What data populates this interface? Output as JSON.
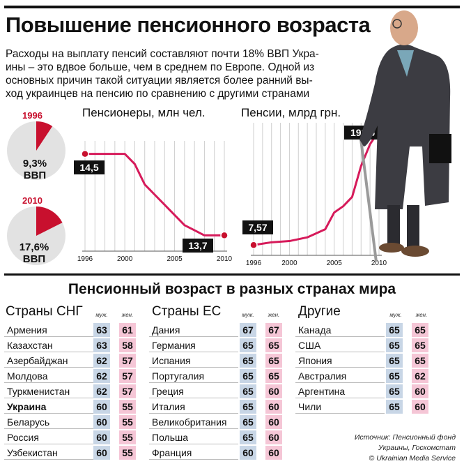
{
  "title": "Повышение пенсионного возраста",
  "intro_lines": [
    "Расходы на выплату пенсий составляют почти 18% ВВП Укра-",
    "ины – это вдвое больше, чем в среднем по Европе. Одной из",
    "основных причин такой ситуации является более ранний вы-",
    "ход украинцев на пенсию по сравнению с другими странами"
  ],
  "pies": [
    {
      "year": "1996",
      "value_label": "9,3%",
      "unit": "ВВП",
      "share": 0.093
    },
    {
      "year": "2010",
      "value_label": "17,6%",
      "unit": "ВВП",
      "share": 0.176
    }
  ],
  "colors": {
    "accent": "#c8102e",
    "line": "#d61a5a",
    "male": "#c8d6e6",
    "female": "#f5c6d6",
    "pie_bg": "#e2e2e2"
  },
  "chart_data": [
    {
      "type": "line",
      "title": "Пенсионеры, млн чел.",
      "x": [
        1996,
        1997,
        1998,
        1999,
        2000,
        2001,
        2002,
        2003,
        2004,
        2005,
        2006,
        2007,
        2008,
        2009,
        2010
      ],
      "values": [
        14.5,
        14.5,
        14.5,
        14.5,
        14.5,
        14.4,
        14.2,
        14.1,
        14.0,
        13.9,
        13.8,
        13.75,
        13.7,
        13.7,
        13.7
      ],
      "data_labels": [
        {
          "x": 1996,
          "label": "14,5"
        },
        {
          "x": 2010,
          "label": "13,7"
        }
      ],
      "tick_labels": [
        "1996",
        "2000",
        "2005",
        "2010"
      ],
      "xlim": [
        1996,
        2010
      ],
      "ylim": [
        13.6,
        14.6
      ],
      "grid": true
    },
    {
      "type": "line",
      "title": "Пенсии, млрд грн.",
      "x": [
        1996,
        1998,
        2000,
        2002,
        2004,
        2005,
        2006,
        2007,
        2008,
        2009,
        2010
      ],
      "values": [
        7.57,
        12,
        14,
        20,
        33,
        60,
        70,
        85,
        135,
        170,
        191.5
      ],
      "data_labels": [
        {
          "x": 1996,
          "label": "7,57"
        },
        {
          "x": 2010,
          "label": "191,5"
        }
      ],
      "tick_labels": [
        "1996",
        "2000",
        "2005",
        "2010"
      ],
      "xlim": [
        1996,
        2010
      ],
      "ylim": [
        0,
        200
      ],
      "grid": true
    }
  ],
  "ages": {
    "title": "Пенсионный возраст в разных странах мира",
    "male_header": "муж.",
    "female_header": "жен.",
    "groups": [
      {
        "name": "Страны СНГ",
        "rows": [
          {
            "country": "Армения",
            "m": "63",
            "f": "61"
          },
          {
            "country": "Казахстан",
            "m": "63",
            "f": "58"
          },
          {
            "country": "Азербайджан",
            "m": "62",
            "f": "57"
          },
          {
            "country": "Молдова",
            "m": "62",
            "f": "57"
          },
          {
            "country": "Туркменистан",
            "m": "62",
            "f": "57"
          },
          {
            "country": "Украина",
            "m": "60",
            "f": "55",
            "bold": true
          },
          {
            "country": "Беларусь",
            "m": "60",
            "f": "55"
          },
          {
            "country": "Россия",
            "m": "60",
            "f": "55"
          },
          {
            "country": "Узбекистан",
            "m": "60",
            "f": "55"
          }
        ]
      },
      {
        "name": "Страны ЕС",
        "rows": [
          {
            "country": "Дания",
            "m": "67",
            "f": "67"
          },
          {
            "country": "Германия",
            "m": "65",
            "f": "65"
          },
          {
            "country": "Испания",
            "m": "65",
            "f": "65"
          },
          {
            "country": "Португалия",
            "m": "65",
            "f": "65"
          },
          {
            "country": "Греция",
            "m": "65",
            "f": "60"
          },
          {
            "country": "Италия",
            "m": "65",
            "f": "60"
          },
          {
            "country": "Великобритания",
            "m": "65",
            "f": "60"
          },
          {
            "country": "Польша",
            "m": "65",
            "f": "60"
          },
          {
            "country": "Франция",
            "m": "60",
            "f": "60"
          }
        ]
      },
      {
        "name": "Другие",
        "rows": [
          {
            "country": "Канада",
            "m": "65",
            "f": "65"
          },
          {
            "country": "США",
            "m": "65",
            "f": "65"
          },
          {
            "country": "Япония",
            "m": "65",
            "f": "65"
          },
          {
            "country": "Австралия",
            "m": "65",
            "f": "62"
          },
          {
            "country": "Аргентина",
            "m": "65",
            "f": "60"
          },
          {
            "country": "Чили",
            "m": "65",
            "f": "60"
          }
        ]
      }
    ]
  },
  "source_lines": [
    "Источник: Пенсионный фонд",
    "Украины, Госкомстат",
    "© Ukrainian Media Service"
  ]
}
